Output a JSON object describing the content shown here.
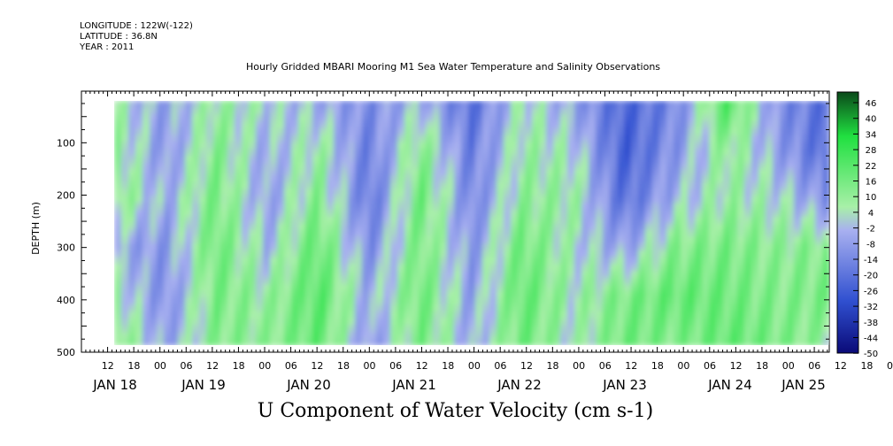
{
  "header": {
    "longitude": "LONGITUDE : 122W(-122)",
    "latitude": "LATITUDE : 36.8N",
    "year": "YEAR : 2011"
  },
  "title": "Hourly Gridded MBARI Mooring M1 Sea Water Temperature and Salinity Observations",
  "caption": "U Component of Water Velocity (cm s-1)",
  "colors": {
    "negative_strong": "#0a0a78",
    "negative_mid": "#3050d0",
    "negative_light": "#a8b0f0",
    "positive_light": "#a8f0a8",
    "positive_mid": "#20e040",
    "positive_strong": "#0a4a1a"
  },
  "chart_data": {
    "type": "heatmap",
    "title": "Hourly Gridded MBARI Mooring M1 Sea Water Temperature and Salinity Observations",
    "xlabel": "",
    "ylabel": "DEPTH (m)",
    "ylim": [
      500,
      20
    ],
    "y_ticks": [
      100,
      200,
      300,
      400,
      500
    ],
    "x_hour_ticks": [
      "12",
      "18",
      "00",
      "06",
      "12",
      "18",
      "00",
      "06",
      "12",
      "18",
      "00",
      "06",
      "12",
      "18",
      "00",
      "06",
      "12",
      "18",
      "00",
      "06",
      "12",
      "18",
      "00",
      "06",
      "12",
      "18",
      "00",
      "06",
      "12",
      "18",
      "00",
      "06"
    ],
    "x_date_ticks": [
      "JAN 18",
      "JAN 19",
      "JAN 20",
      "JAN 21",
      "JAN 22",
      "JAN 23",
      "JAN 24",
      "JAN 25"
    ],
    "colorbar_labels": [
      "46",
      "40",
      "34",
      "28",
      "22",
      "16",
      "10",
      "4",
      "-2",
      "-8",
      "-14",
      "-20",
      "-26",
      "-32",
      "-38",
      "-44",
      "-50"
    ],
    "value_range": [
      -50,
      50
    ],
    "grid": false,
    "time_columns": [
      "Jan18 14h",
      "Jan19 00h",
      "Jan19 12h",
      "Jan20 00h",
      "Jan20 12h",
      "Jan21 00h",
      "Jan21 12h",
      "Jan22 00h",
      "Jan22 12h",
      "Jan23 00h",
      "Jan23 12h",
      "Jan24 00h",
      "Jan24 12h",
      "Jan25 00h",
      "Jan25 08h"
    ],
    "depth_rows": [
      30,
      100,
      200,
      300,
      400,
      480
    ],
    "values": [
      [
        4,
        -6,
        6,
        2,
        -4,
        -10,
        -2,
        -18,
        4,
        -6,
        -20,
        -12,
        20,
        -10,
        -18
      ],
      [
        8,
        -8,
        10,
        -4,
        6,
        -14,
        10,
        -14,
        6,
        2,
        -22,
        -8,
        8,
        -6,
        -20
      ],
      [
        10,
        -4,
        12,
        -6,
        10,
        -16,
        14,
        -12,
        8,
        6,
        -18,
        -2,
        6,
        2,
        -10
      ],
      [
        -4,
        -8,
        14,
        -2,
        16,
        -10,
        12,
        -8,
        14,
        2,
        -6,
        10,
        12,
        8,
        10
      ],
      [
        6,
        -10,
        12,
        6,
        18,
        -4,
        14,
        -6,
        16,
        4,
        12,
        16,
        14,
        10,
        12
      ],
      [
        12,
        -6,
        10,
        8,
        16,
        -8,
        12,
        -4,
        14,
        2,
        14,
        10,
        16,
        12,
        6
      ]
    ]
  }
}
